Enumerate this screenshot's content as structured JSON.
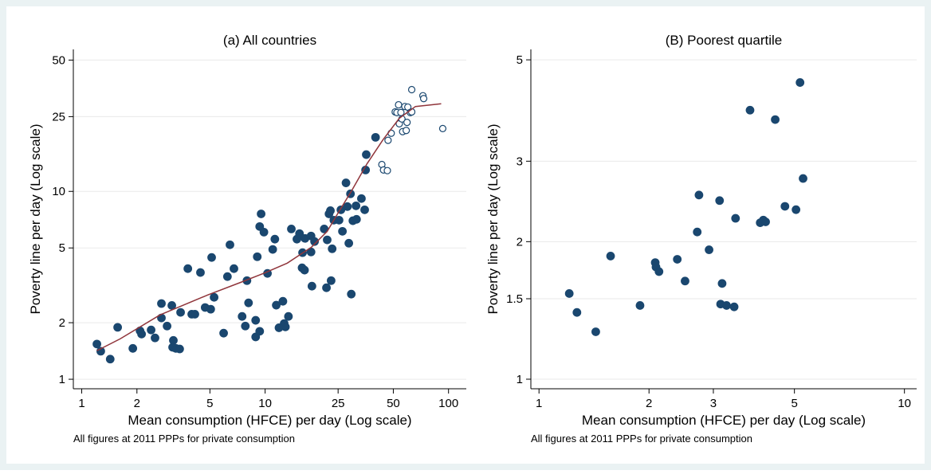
{
  "chart_data": [
    {
      "type": "scatter",
      "title": "(a) All countries",
      "xlabel": "Mean consumption (HFCE) per day (Log scale)",
      "ylabel": "Poverty line per day (Log scale)",
      "note": "All figures at 2011 PPPs for private consumption",
      "xlog": true,
      "ylog": true,
      "grid": true,
      "xlim": [
        0.9,
        125
      ],
      "ylim": [
        0.89,
        57
      ],
      "xticks": [
        1,
        2,
        5,
        10,
        25,
        50,
        100
      ],
      "yticks": [
        1,
        2,
        5,
        10,
        25,
        50
      ],
      "series": [
        {
          "marker": "filled",
          "color": "#1a476f",
          "x": [
            1.21,
            1.27,
            1.43,
            1.57,
            1.9,
            2.08,
            2.12,
            2.39,
            2.51,
            2.72,
            2.72,
            2.92,
            3.1,
            3.13,
            3.16,
            3.26,
            3.42,
            3.46,
            3.79,
            3.98,
            4.14,
            4.44,
            4.71,
            5.05,
            5.11,
            5.27,
            5.94,
            6.23,
            6.43,
            6.76,
            7.49,
            7.8,
            7.96,
            8.12,
            8.88,
            8.88,
            9.06,
            9.34,
            9.34,
            9.51,
            9.85,
            10.3,
            11,
            11.3,
            11.5,
            11.9,
            12.5,
            12.7,
            12.9,
            13.4,
            13.9,
            14.9,
            15.4,
            15.9,
            16,
            16.4,
            16.5,
            17.8,
            17.8,
            18,
            18.6,
            21,
            21.6,
            21.8,
            22.3,
            22.7,
            22.9,
            23.2,
            23.7,
            25.3,
            25.9,
            26.4,
            27.6,
            28.1,
            28.6,
            29.2,
            29.5,
            30.1,
            31.3,
            31.5,
            33.5,
            34.9,
            35.3,
            35.6,
            40
          ],
          "y": [
            1.54,
            1.41,
            1.28,
            1.89,
            1.46,
            1.81,
            1.74,
            1.83,
            1.66,
            2.12,
            2.53,
            1.92,
            2.47,
            1.48,
            1.61,
            1.46,
            1.45,
            2.27,
            3.88,
            2.22,
            2.22,
            3.7,
            2.41,
            2.36,
            4.45,
            2.73,
            1.76,
            3.52,
            5.2,
            3.88,
            2.16,
            1.92,
            3.35,
            2.55,
            2.06,
            1.68,
            4.49,
            6.5,
            1.8,
            7.59,
            6.07,
            3.66,
            4.91,
            5.57,
            2.48,
            1.88,
            2.6,
            1.98,
            1.9,
            2.16,
            6.31,
            5.57,
            5.96,
            3.92,
            4.72,
            3.81,
            5.62,
            5.79,
            4.76,
            3.13,
            5.41,
            6.31,
            3.07,
            5.52,
            7.59,
            7.9,
            3.35,
            4.95,
            7.03,
            7.03,
            7.98,
            6.13,
            11.1,
            8.3,
            5.3,
            9.71,
            2.84,
            6.98,
            8.38,
            7.1,
            9.16,
            7.98,
            13,
            15.7,
            19.4
          ]
        },
        {
          "marker": "hollow",
          "color": "#1a476f",
          "x": [
            43.3,
            44.2,
            46.4,
            46.8,
            48.7,
            51.2,
            52.3,
            53.4,
            53.9,
            55,
            55.7,
            56.2,
            57.8,
            58.8,
            59.4,
            60,
            61.9,
            63,
            63,
            72.5,
            73.2,
            93
          ],
          "y": [
            13.9,
            13,
            12.9,
            18.7,
            20.4,
            26.5,
            26.3,
            28.9,
            22.9,
            26.3,
            24.3,
            20.8,
            28.3,
            21.1,
            23.3,
            28.1,
            26.3,
            26.5,
            34.8,
            32.3,
            31.2,
            21.6
          ]
        },
        {
          "marker": "line",
          "color": "#90353b",
          "x": [
            1.21,
            1.62,
            2.67,
            4.86,
            7.25,
            9.8,
            13.2,
            17.9,
            21.8,
            25.3,
            29.5,
            35.9,
            43.9,
            53.9,
            66,
            91.2
          ],
          "y": [
            1.42,
            1.64,
            2.2,
            2.81,
            3.26,
            3.66,
            4.15,
            5.05,
            6.13,
            7.83,
            10,
            14,
            18.8,
            24.5,
            28.3,
            29.3
          ]
        }
      ]
    },
    {
      "type": "scatter",
      "title": "(B) Poorest quartile",
      "xlabel": "Mean consumption (HFCE) per day (Log scale)",
      "ylabel": "Poverty line per day (Log scale)",
      "note": "All figures at 2011 PPPs for private consumption",
      "xlog": true,
      "ylog": true,
      "grid": true,
      "xlim": [
        0.95,
        10.8
      ],
      "ylim": [
        0.953,
        5.27
      ],
      "xticks": [
        1,
        2,
        3,
        5,
        10
      ],
      "yticks": [
        1,
        1.5,
        2,
        3,
        5
      ],
      "series": [
        {
          "marker": "filled",
          "color": "#1a476f",
          "x": [
            1.21,
            1.27,
            1.43,
            1.57,
            1.89,
            2.08,
            2.09,
            2.13,
            2.39,
            2.51,
            2.71,
            2.74,
            2.92,
            3.12,
            3.14,
            3.17,
            3.26,
            3.42,
            3.45,
            3.78,
            4.03,
            4.11,
            4.17,
            4.43,
            4.71,
            5.05,
            5.18,
            5.28
          ],
          "y": [
            1.54,
            1.4,
            1.27,
            1.86,
            1.45,
            1.8,
            1.76,
            1.72,
            1.83,
            1.64,
            2.1,
            2.53,
            1.92,
            2.46,
            1.46,
            1.62,
            1.45,
            1.44,
            2.25,
            3.88,
            2.2,
            2.23,
            2.21,
            3.7,
            2.39,
            2.35,
            4.46,
            2.75
          ]
        }
      ]
    }
  ]
}
